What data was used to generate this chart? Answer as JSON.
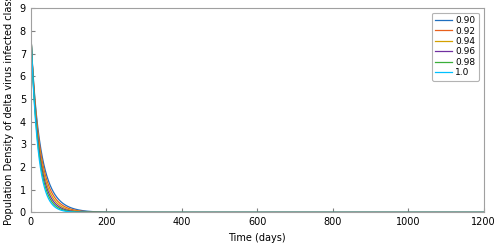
{
  "title": "",
  "xlabel": "Time (days)",
  "ylabel": "Population Density of delta virus infected class",
  "xlim": [
    0,
    1200
  ],
  "ylim": [
    0,
    9
  ],
  "yticks": [
    0,
    1,
    2,
    3,
    4,
    5,
    6,
    7,
    8,
    9
  ],
  "xticks": [
    0,
    200,
    400,
    600,
    800,
    1000,
    1200
  ],
  "x_max": 1200,
  "t_points": 3000,
  "initial_value": 8.0,
  "legend_entries": [
    "0.90",
    "0.92",
    "0.94",
    "0.96",
    "0.98",
    "1.0"
  ],
  "line_colors": [
    "#1f6fbf",
    "#e8601c",
    "#d4a000",
    "#7030a0",
    "#3aaf3a",
    "#00c0ff"
  ],
  "alpha_values": [
    0.9,
    0.92,
    0.94,
    0.96,
    0.98,
    1.0
  ],
  "base_decay": 0.055,
  "background_color": "#ffffff",
  "legend_fontsize": 6.5,
  "axis_fontsize": 7,
  "tick_fontsize": 7,
  "linewidth": 0.9
}
